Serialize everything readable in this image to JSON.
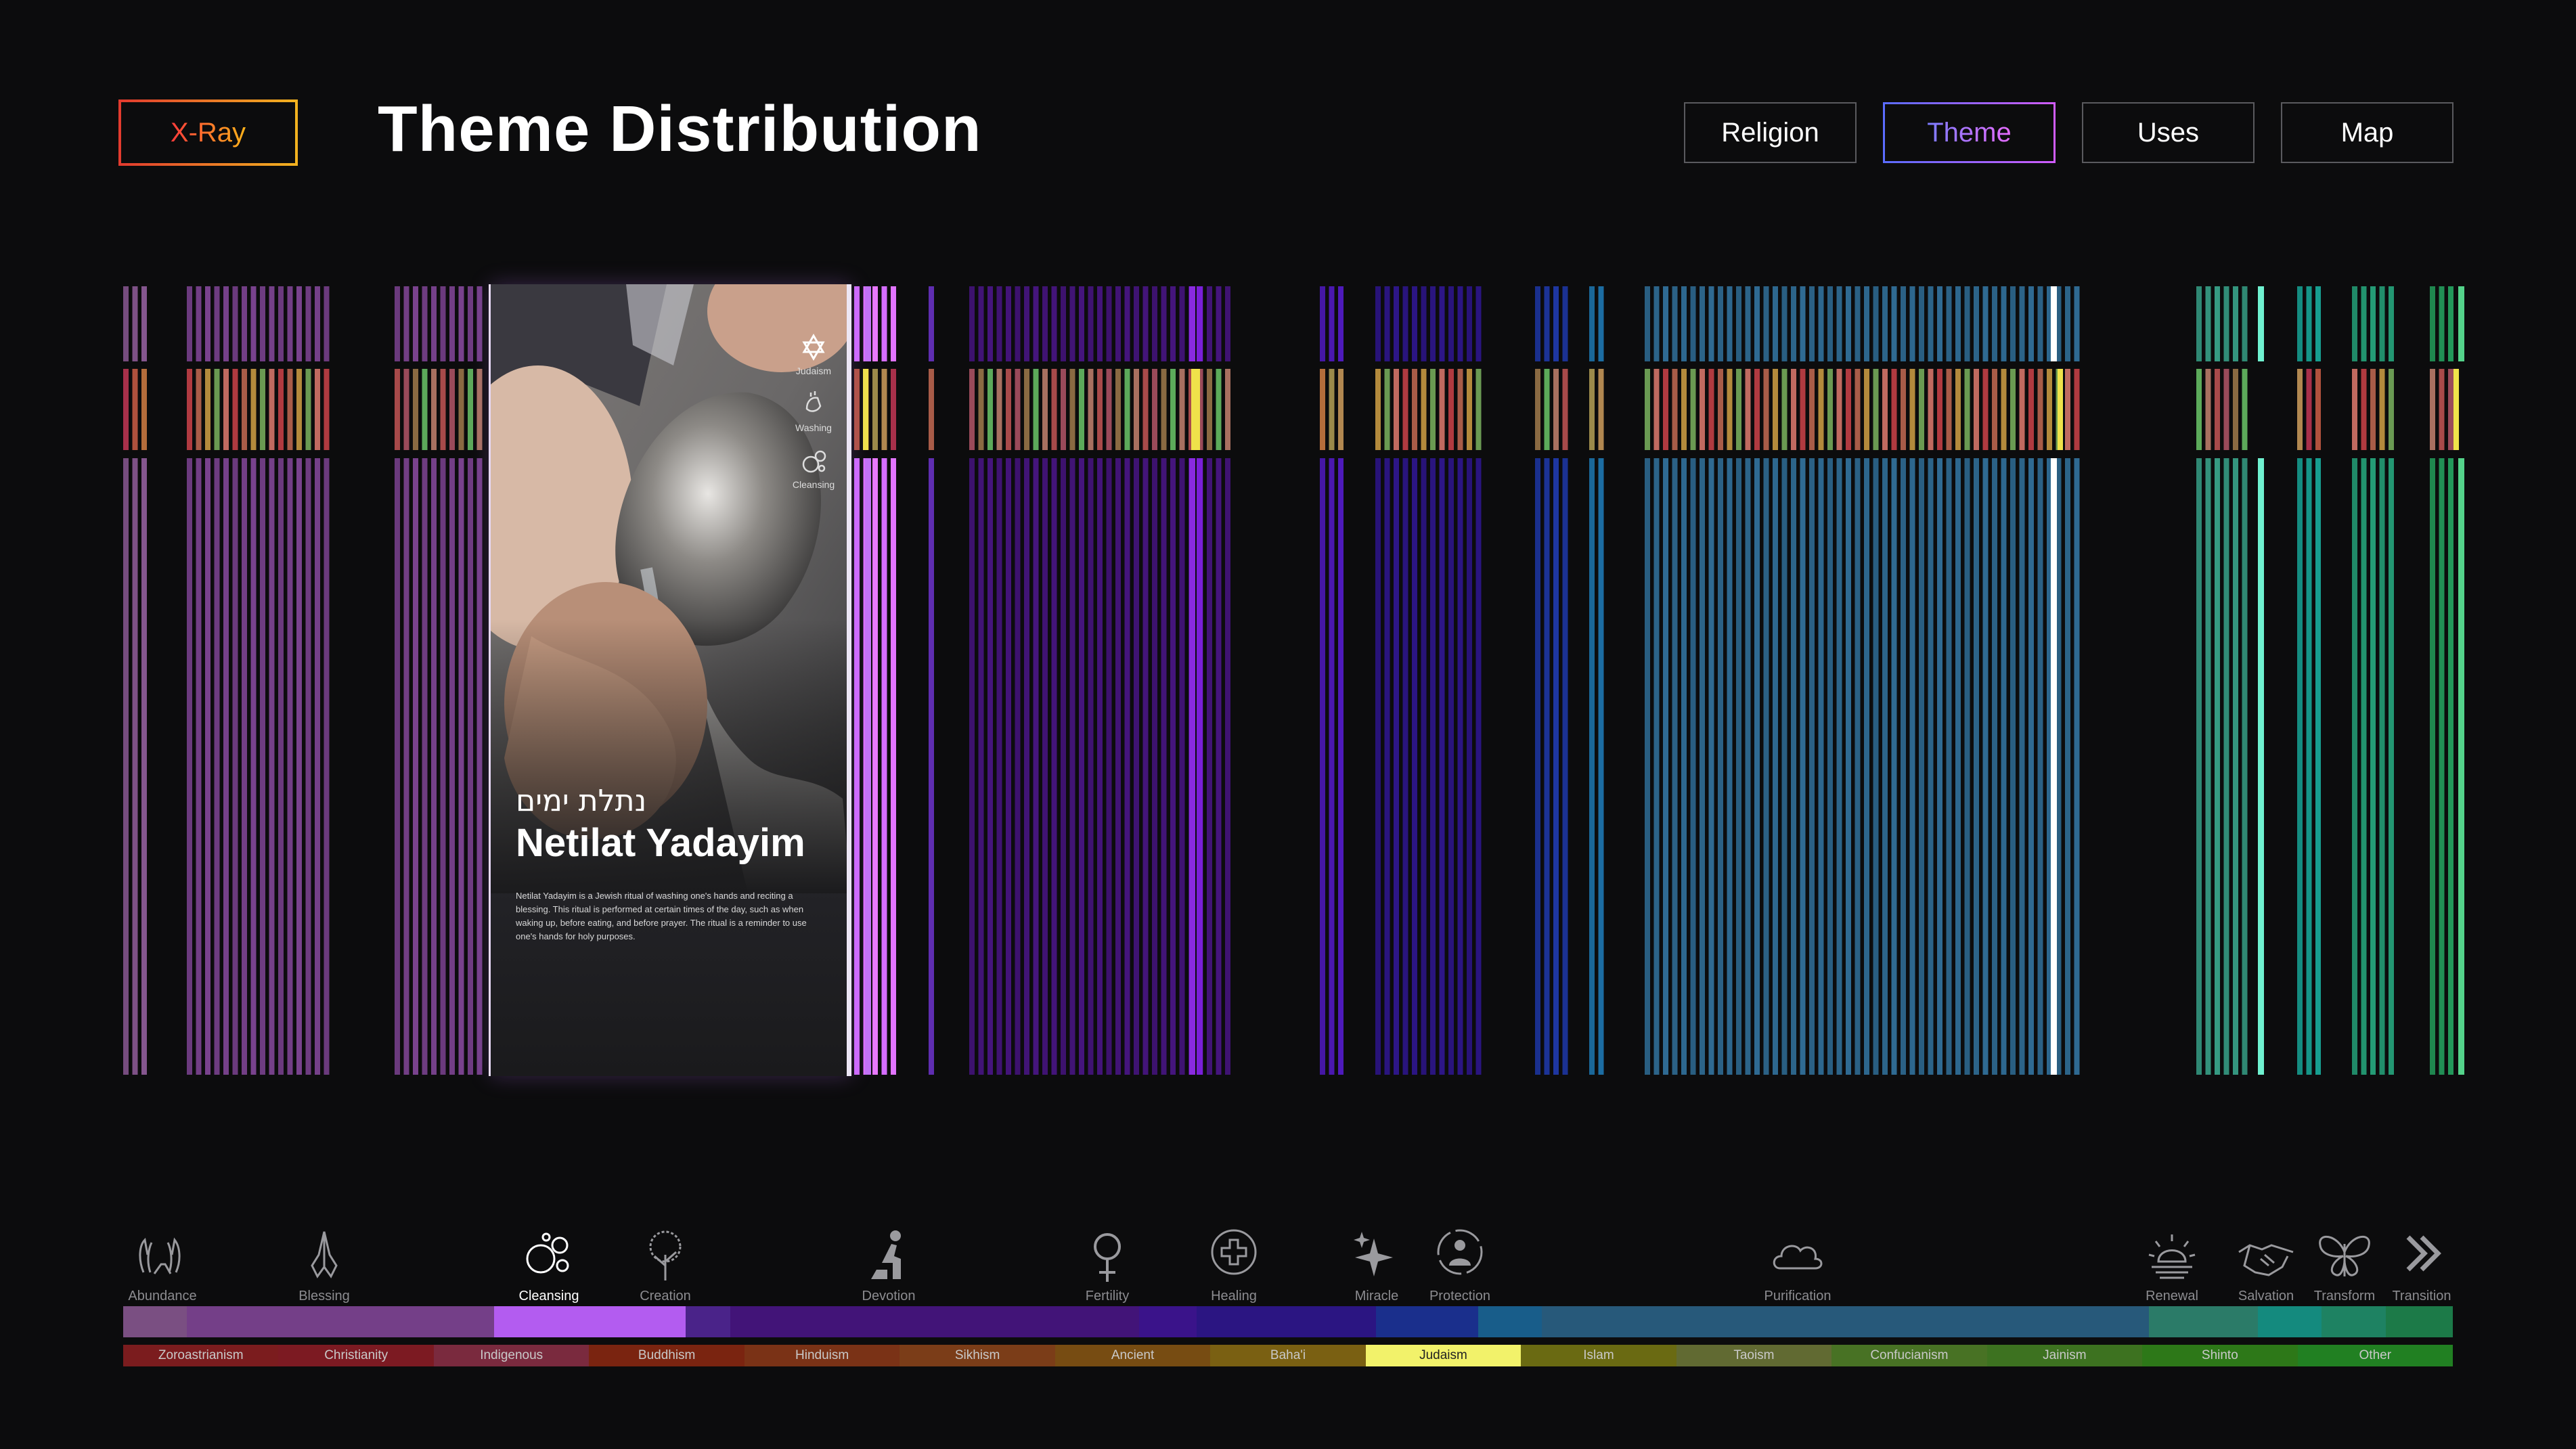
{
  "header": {
    "xray_label": "X-Ray",
    "title": "Theme Distribution",
    "nav": [
      {
        "label": "Religion",
        "active": false
      },
      {
        "label": "Theme",
        "active": true
      },
      {
        "label": "Uses",
        "active": false
      },
      {
        "label": "Map",
        "active": false
      }
    ]
  },
  "card": {
    "hebrew": "נתלת ימים",
    "title": "Netilat Yadayim",
    "description": "Netilat Yadayim is a Jewish ritual of washing one's hands and reciting a blessing. This ritual is performed at certain times of the day, such as when waking up, before eating, and before prayer. The ritual is a reminder to use one's hands for holy purposes.",
    "tags": [
      {
        "label": "Judaism",
        "icon": "star-of-david-icon"
      },
      {
        "label": "Washing",
        "icon": "washing-hands-icon"
      },
      {
        "label": "Cleansing",
        "icon": "bubbles-icon"
      }
    ]
  },
  "themes": [
    {
      "label": "Abundance",
      "icon": "open-hands-icon",
      "color": "#7a4f82",
      "weight": 1
    },
    {
      "label": "Blessing",
      "icon": "praying-hands-icon",
      "color": "#743f88",
      "weight": 4.8
    },
    {
      "label": "Cleansing",
      "icon": "bubbles-icon",
      "color": "#b35cf0",
      "weight": 3,
      "selected": true
    },
    {
      "label": "Creation",
      "icon": "tree-icon",
      "color": "#4a2389",
      "weight": 0.7
    },
    {
      "label": "Devotion",
      "icon": "kneeling-person-icon",
      "color": "#421478",
      "weight": 6.4
    },
    {
      "label": "Fertility",
      "icon": "venus-icon",
      "color": "#3a138a",
      "weight": 0.9
    },
    {
      "label": "Healing",
      "icon": "medical-cross-icon",
      "color": "#2b1582",
      "weight": 2.8
    },
    {
      "label": "Miracle",
      "icon": "sparkles-icon",
      "color": "#1a2f8c",
      "weight": 1.6
    },
    {
      "label": "Protection",
      "icon": "shield-person-icon",
      "color": "#185d8a",
      "weight": 1
    },
    {
      "label": "Purification",
      "icon": "cloud-icon",
      "color": "#27597a",
      "weight": 9.5
    },
    {
      "label": "Renewal",
      "icon": "sunrise-icon",
      "color": "#2b7b68",
      "weight": 1.7
    },
    {
      "label": "Salvation",
      "icon": "handshake-icon",
      "color": "#148a7e",
      "weight": 1
    },
    {
      "label": "Transform",
      "icon": "butterfly-icon",
      "color": "#1e8262",
      "weight": 1
    },
    {
      "label": "Transition",
      "icon": "chevrons-right-icon",
      "color": "#1c7a48",
      "weight": 1.05
    }
  ],
  "religions": [
    {
      "label": "Zoroastrianism",
      "color": "#7b1c1e"
    },
    {
      "label": "Christianity",
      "color": "#7c1a22"
    },
    {
      "label": "Indigenous",
      "color": "#7a2a3e"
    },
    {
      "label": "Buddhism",
      "color": "#7a2410"
    },
    {
      "label": "Hinduism",
      "color": "#7a3216"
    },
    {
      "label": "Sikhism",
      "color": "#7b3d18"
    },
    {
      "label": "Ancient",
      "color": "#774c12"
    },
    {
      "label": "Baha'i",
      "color": "#7a6012"
    },
    {
      "label": "Judaism",
      "color": "#f2f26a",
      "selected": true
    },
    {
      "label": "Islam",
      "color": "#6a6a12"
    },
    {
      "label": "Taoism",
      "color": "#616a32"
    },
    {
      "label": "Confucianism",
      "color": "#487224"
    },
    {
      "label": "Jainism",
      "color": "#3d7220"
    },
    {
      "label": "Shinto",
      "color": "#2d7818"
    },
    {
      "label": "Other",
      "color": "#218022"
    }
  ]
}
